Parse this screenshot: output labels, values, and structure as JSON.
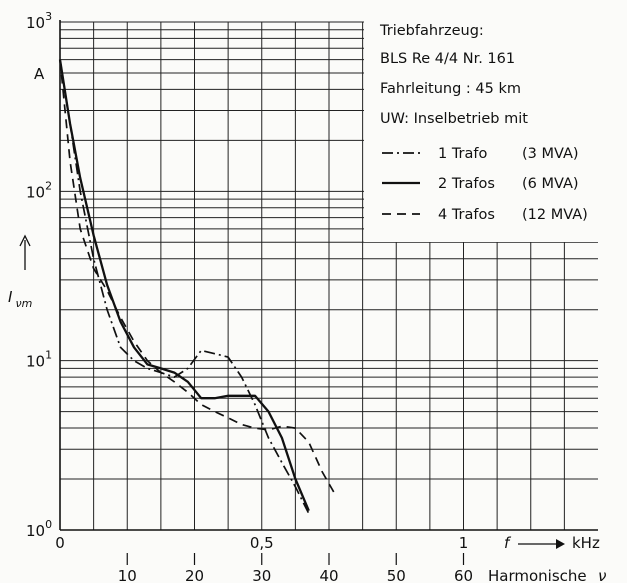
{
  "chart_data": {
    "type": "line",
    "title": "",
    "xlabel": "Harmonische",
    "xlabel_symbol": "ν",
    "ylabel": "I",
    "ylabel_subscript": "νm",
    "yunit": "A",
    "xunit_secondary": "kHz",
    "x_secondary_label": "f",
    "yscale": "log",
    "ylim": [
      1,
      1000
    ],
    "xlim": [
      0,
      80
    ],
    "y_ticks": [
      {
        "value": 1,
        "base": "10",
        "exp": "0"
      },
      {
        "value": 10,
        "base": "10",
        "exp": "1"
      },
      {
        "value": 100,
        "base": "10",
        "exp": "2"
      },
      {
        "value": 1000,
        "base": "10",
        "exp": "3"
      }
    ],
    "x_ticks_primary": [
      "0",
      "10",
      "20",
      "30",
      "40",
      "50",
      "60"
    ],
    "x_ticks_secondary": [
      {
        "value": 0,
        "label": "0"
      },
      {
        "value": 30,
        "label": "0,5"
      },
      {
        "value": 60,
        "label": "1"
      }
    ],
    "grid": true,
    "legend_position": "top-right",
    "legend_header": [
      "Triebfahrzeug:",
      "BLS Re 4/4 Nr. 161",
      "Fahrleitung : 45 km",
      "UW: Inselbetrieb mit"
    ],
    "series": [
      {
        "name": "1 Trafo",
        "capacity": "(3 MVA)",
        "style": "dashdot",
        "x": [
          0,
          1.5,
          3,
          5,
          7,
          9,
          11,
          13,
          15,
          17,
          19,
          21,
          23,
          25,
          27,
          29,
          31,
          33,
          35,
          37
        ],
        "y": [
          600,
          250,
          100,
          40,
          20,
          12,
          10,
          9,
          8.5,
          8,
          9,
          11.5,
          11,
          10.5,
          8,
          5.5,
          3.5,
          2.5,
          1.8,
          1.25
        ]
      },
      {
        "name": "2 Trafos",
        "capacity": "(6 MVA)",
        "style": "solid",
        "x": [
          0,
          1.5,
          3,
          5,
          7,
          9,
          11,
          13,
          15,
          17,
          19,
          21,
          23,
          25,
          27,
          29,
          31,
          33,
          35,
          37
        ],
        "y": [
          600,
          250,
          120,
          55,
          28,
          17,
          12,
          9.5,
          9,
          8.5,
          7.5,
          6,
          6,
          6.2,
          6.2,
          6.2,
          5,
          3.5,
          2,
          1.3
        ]
      },
      {
        "name": "4 Trafos",
        "capacity": "(12 MVA)",
        "style": "dashed",
        "x": [
          0,
          1.5,
          3,
          5,
          7,
          9,
          11,
          13,
          15,
          17,
          19,
          21,
          23,
          25,
          27,
          29,
          31,
          33,
          35,
          37,
          39,
          41
        ],
        "y": [
          600,
          150,
          60,
          35,
          26,
          18,
          13,
          10,
          8.5,
          7.5,
          6.5,
          5.5,
          5,
          4.6,
          4.2,
          4,
          3.9,
          4.1,
          4,
          3.3,
          2.2,
          1.6
        ]
      }
    ]
  }
}
